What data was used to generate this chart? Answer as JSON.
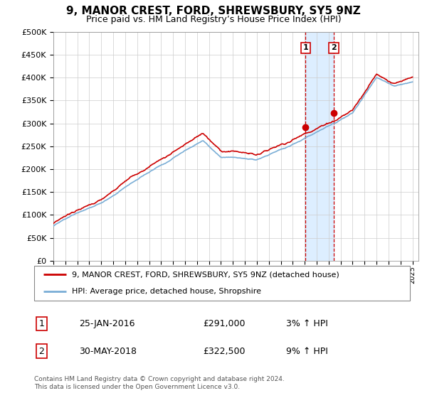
{
  "title": "9, MANOR CREST, FORD, SHREWSBURY, SY5 9NZ",
  "subtitle": "Price paid vs. HM Land Registry’s House Price Index (HPI)",
  "legend_line1": "9, MANOR CREST, FORD, SHREWSBURY, SY5 9NZ (detached house)",
  "legend_line2": "HPI: Average price, detached house, Shropshire",
  "footnote": "Contains HM Land Registry data © Crown copyright and database right 2024.\nThis data is licensed under the Open Government Licence v3.0.",
  "transaction1_date": "25-JAN-2016",
  "transaction1_price": "£291,000",
  "transaction1_hpi": "3% ↑ HPI",
  "transaction2_date": "30-MAY-2018",
  "transaction2_price": "£322,500",
  "transaction2_hpi": "9% ↑ HPI",
  "price_color": "#cc0000",
  "hpi_color": "#7aaed6",
  "highlight_color": "#ddeeff",
  "vline_color": "#cc0000",
  "ylim": [
    0,
    500000
  ],
  "yticks": [
    0,
    50000,
    100000,
    150000,
    200000,
    250000,
    300000,
    350000,
    400000,
    450000,
    500000
  ],
  "transaction1_year": 2016.07,
  "transaction2_year": 2018.42,
  "price_t1": 291000,
  "price_t2": 322500
}
